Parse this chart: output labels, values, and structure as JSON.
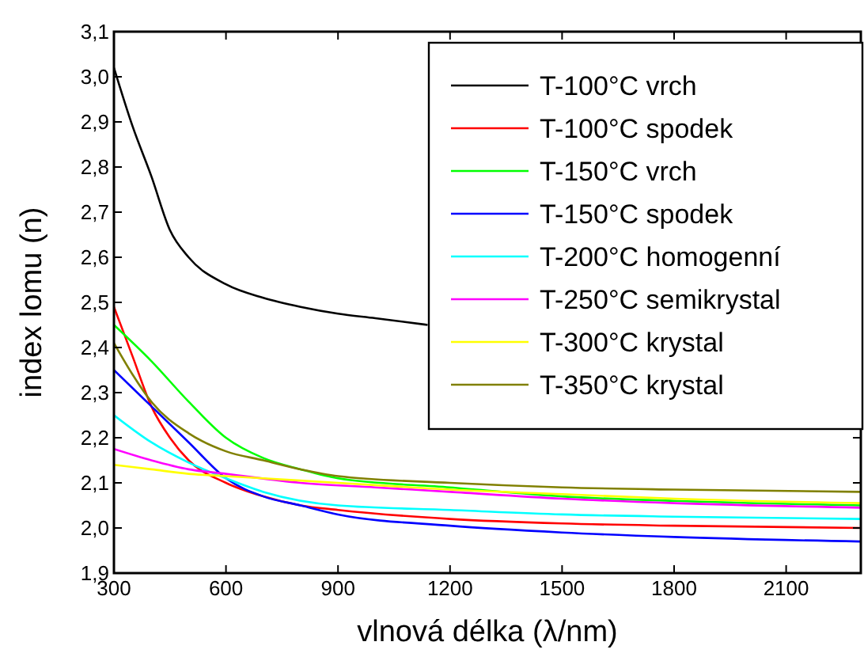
{
  "chart_data": {
    "type": "line",
    "xlabel": "vlnová délka (λ/nm)",
    "ylabel": "index lomu (n)",
    "xlim": [
      300,
      2300
    ],
    "xticks": [
      300,
      600,
      900,
      1200,
      1500,
      1800,
      2100
    ],
    "ylim": [
      1.9,
      3.1
    ],
    "yticks": [
      {
        "value": 1.9,
        "label": "1,9"
      },
      {
        "value": 2.0,
        "label": "2,0"
      },
      {
        "value": 2.1,
        "label": "2,1"
      },
      {
        "value": 2.2,
        "label": "2,2"
      },
      {
        "value": 2.3,
        "label": "2,3"
      },
      {
        "value": 2.4,
        "label": "2,4"
      },
      {
        "value": 2.5,
        "label": "2,5"
      },
      {
        "value": 2.6,
        "label": "2,6"
      },
      {
        "value": 2.7,
        "label": "2,7"
      },
      {
        "value": 2.8,
        "label": "2,8"
      },
      {
        "value": 2.9,
        "label": "2,9"
      },
      {
        "value": 3.0,
        "label": "3,0"
      },
      {
        "value": 3.1,
        "label": "3,1"
      }
    ],
    "grid": false,
    "legend": "top right",
    "marker": "none",
    "line_style": "solid",
    "series": [
      {
        "name": "T-100°C vrch",
        "color": "#000000",
        "x": [
          300,
          350,
          400,
          450,
          500,
          600,
          700,
          800,
          900,
          1000,
          1140
        ],
        "values": [
          3.02,
          2.89,
          2.78,
          2.66,
          2.6,
          2.54,
          2.51,
          2.49,
          2.475,
          2.465,
          2.45
        ]
      },
      {
        "name": "T-100°C spodek",
        "color": "#ff0000",
        "x": [
          300,
          350,
          400,
          450,
          500,
          600,
          700,
          800,
          900,
          1200,
          1500,
          1800,
          2300
        ],
        "values": [
          2.49,
          2.38,
          2.27,
          2.2,
          2.15,
          2.1,
          2.07,
          2.05,
          2.04,
          2.02,
          2.01,
          2.005,
          2.0
        ]
      },
      {
        "name": "T-150°C vrch",
        "color": "#00ff00",
        "x": [
          300,
          400,
          500,
          600,
          700,
          800,
          900,
          1200,
          1500,
          1800,
          2300
        ],
        "values": [
          2.45,
          2.37,
          2.28,
          2.2,
          2.155,
          2.13,
          2.11,
          2.09,
          2.07,
          2.06,
          2.05
        ]
      },
      {
        "name": "T-150°C spodek",
        "color": "#0000ff",
        "x": [
          300,
          400,
          500,
          600,
          700,
          800,
          900,
          1200,
          1500,
          1800,
          2300
        ],
        "values": [
          2.35,
          2.27,
          2.19,
          2.11,
          2.07,
          2.05,
          2.03,
          2.005,
          1.99,
          1.98,
          1.97
        ]
      },
      {
        "name": "T-200°C homogenní",
        "color": "#00ffff",
        "x": [
          300,
          400,
          500,
          600,
          700,
          900,
          1200,
          1500,
          1800,
          2300
        ],
        "values": [
          2.25,
          2.19,
          2.145,
          2.11,
          2.08,
          2.05,
          2.04,
          2.03,
          2.025,
          2.02
        ]
      },
      {
        "name": "T-250°C semikrystal",
        "color": "#ff00ff",
        "x": [
          300,
          400,
          500,
          600,
          800,
          1000,
          1200,
          1500,
          1800,
          2300
        ],
        "values": [
          2.175,
          2.15,
          2.13,
          2.12,
          2.1,
          2.09,
          2.08,
          2.065,
          2.055,
          2.045
        ]
      },
      {
        "name": "T-300°C krystal",
        "color": "#ffff00",
        "x": [
          300,
          400,
          500,
          600,
          800,
          1000,
          1200,
          1500,
          1800,
          2300
        ],
        "values": [
          2.14,
          2.13,
          2.12,
          2.115,
          2.105,
          2.095,
          2.085,
          2.075,
          2.065,
          2.055
        ]
      },
      {
        "name": "T-350°C krystal",
        "color": "#808000",
        "x": [
          300,
          350,
          400,
          500,
          600,
          700,
          800,
          900,
          1200,
          1500,
          1800,
          2300
        ],
        "values": [
          2.41,
          2.34,
          2.28,
          2.21,
          2.17,
          2.15,
          2.13,
          2.115,
          2.1,
          2.09,
          2.085,
          2.08
        ]
      }
    ]
  }
}
